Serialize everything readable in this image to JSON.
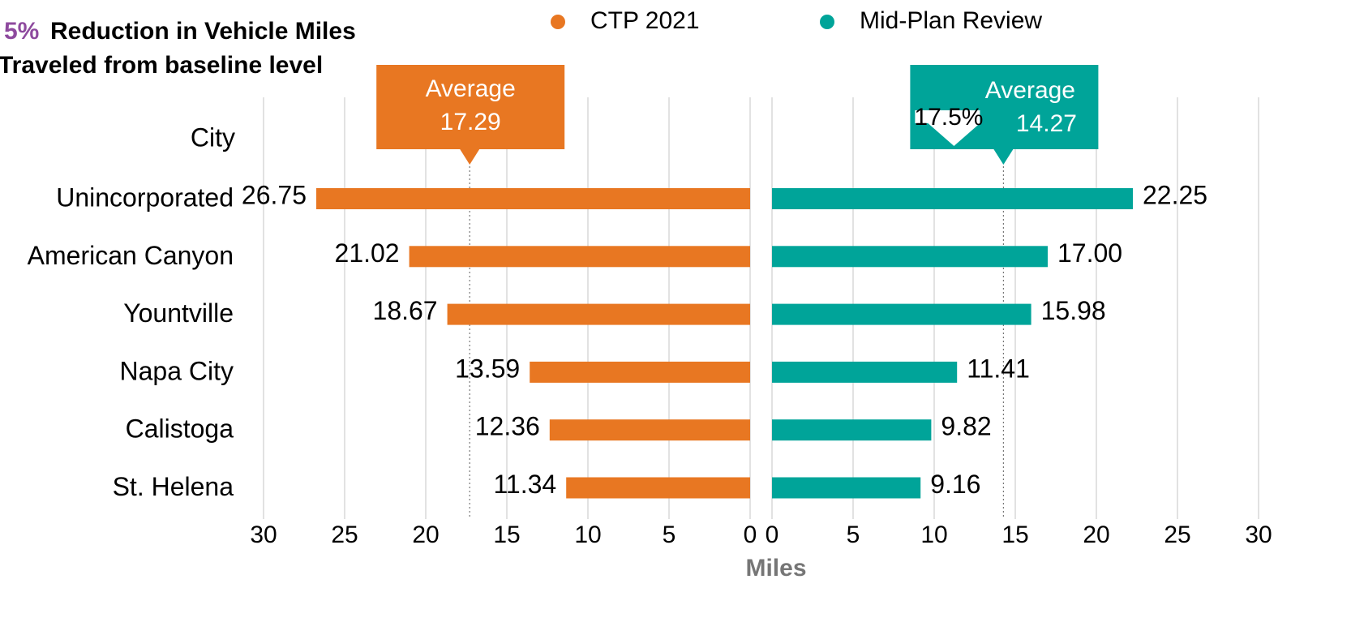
{
  "chart_data": {
    "type": "bar",
    "title_highlight": "5%",
    "title_lines": [
      "Reduction in Vehicle Miles",
      "Traveled from baseline level"
    ],
    "category_header": "City",
    "categories": [
      "Unincorporated",
      "American Canyon",
      "Yountville",
      "Napa City",
      "Calistoga",
      "St. Helena"
    ],
    "xlabel": "Miles",
    "series": [
      {
        "name": "CTP 2021",
        "color": "#e87722",
        "values": [
          26.75,
          21.02,
          18.67,
          13.59,
          12.36,
          11.34
        ],
        "value_labels": [
          "26.75",
          "21.02",
          "18.67",
          "13.59",
          "12.36",
          "11.34"
        ],
        "average_label": "Average",
        "average": 17.29,
        "xlim": [
          0,
          30
        ],
        "xticks": [
          0,
          5,
          10,
          15,
          20,
          25,
          30
        ],
        "reversed": true
      },
      {
        "name": "Mid-Plan Review",
        "color": "#00a499",
        "values": [
          22.25,
          17.0,
          15.98,
          11.41,
          9.82,
          9.16
        ],
        "value_labels": [
          "22.25",
          "17.00",
          "15.98",
          "11.41",
          "9.82",
          "9.16"
        ],
        "average_label": "Average",
        "average": 14.27,
        "change": "17.5%",
        "xlim": [
          0,
          30
        ],
        "xticks": [
          0,
          5,
          10,
          15,
          20,
          25,
          30
        ],
        "reversed": false
      }
    ]
  }
}
